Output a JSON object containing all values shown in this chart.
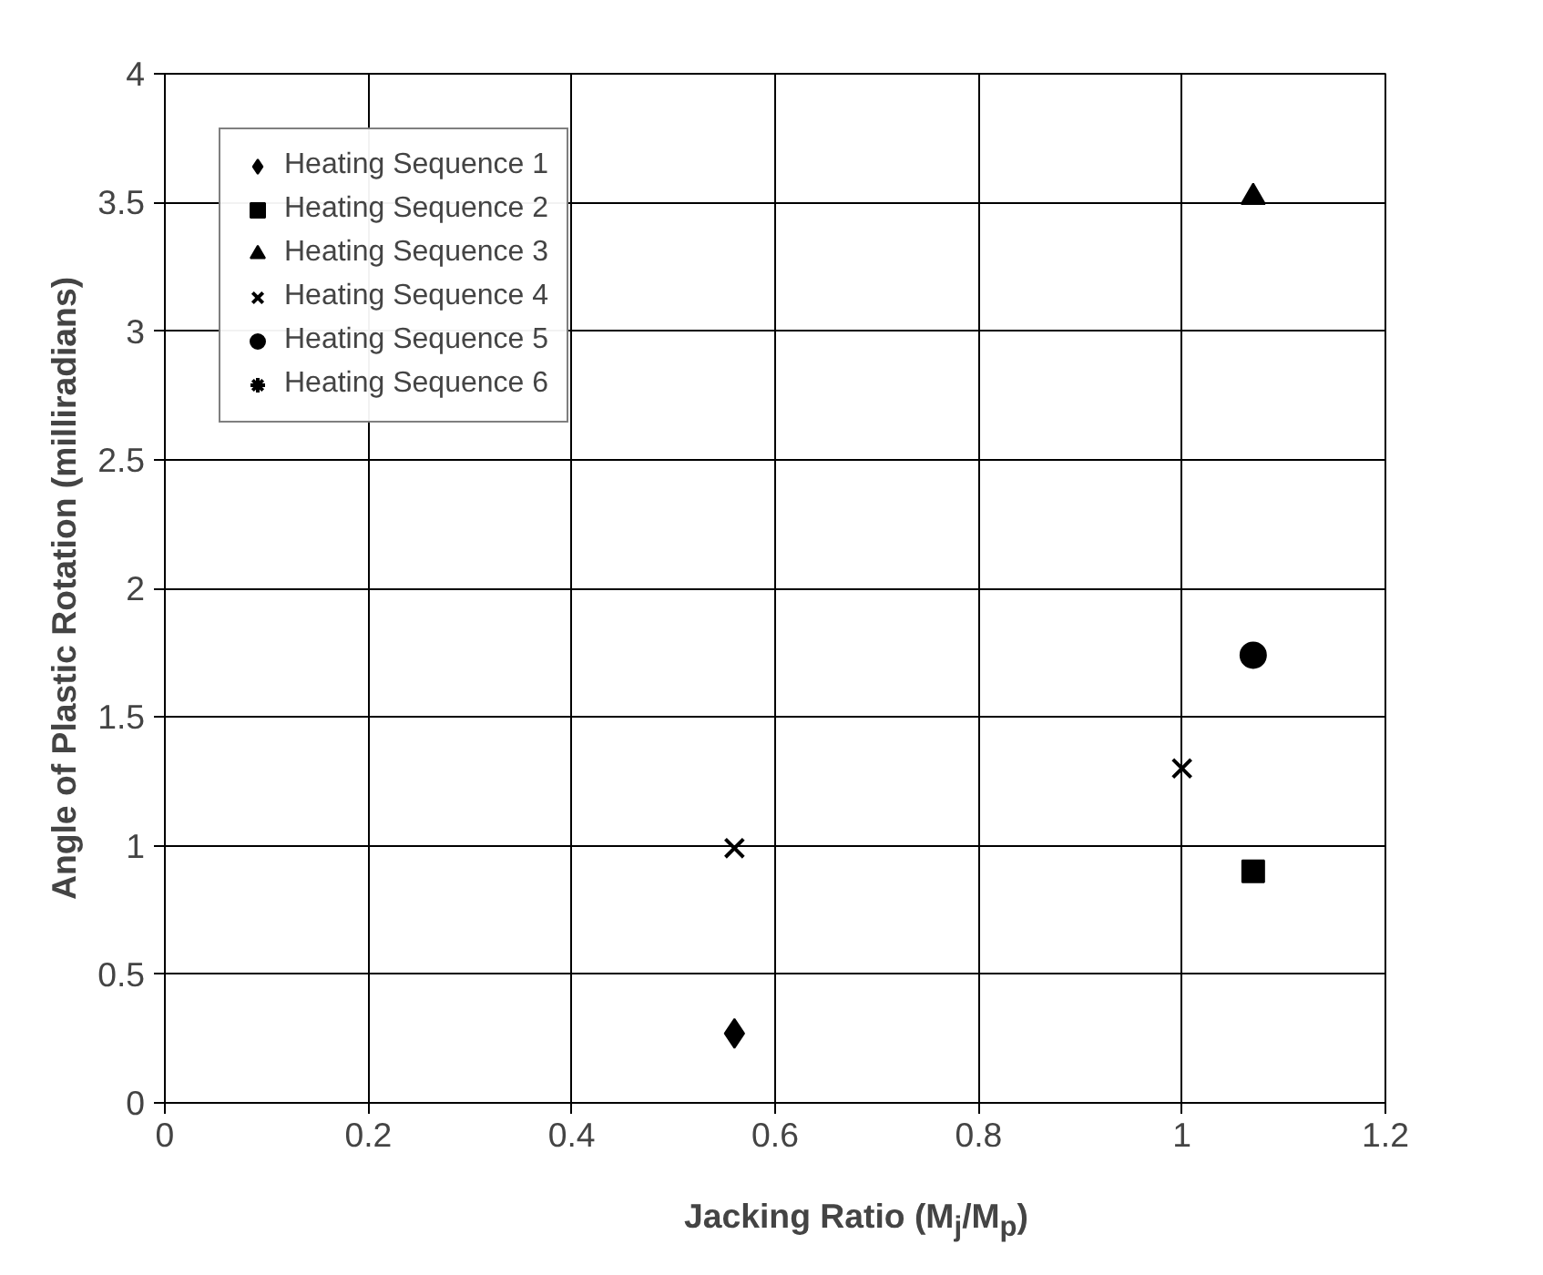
{
  "chart_data": {
    "type": "scatter",
    "xlabel": "Jacking Ratio (M$_{j}$/M$_{p}$)",
    "ylabel": "Angle of Plastic Rotation (milliradians)",
    "xlim": [
      0,
      1.2
    ],
    "ylim": [
      0,
      4
    ],
    "xticks": [
      0,
      0.2,
      0.4,
      0.6,
      0.8,
      1,
      1.2
    ],
    "yticks": [
      0,
      0.5,
      1,
      1.5,
      2,
      2.5,
      3,
      3.5,
      4
    ],
    "grid": true,
    "legend": "top left",
    "series": [
      {
        "name": "Heating Sequence 1",
        "color": "#000000",
        "marker": "diamond",
        "x": [
          0.56
        ],
        "values": [
          0.27
        ]
      },
      {
        "name": "Heating Sequence 2",
        "color": "#000000",
        "marker": "square",
        "x": [
          1.07
        ],
        "values": [
          0.9
        ]
      },
      {
        "name": "Heating Sequence 3",
        "color": "#000000",
        "marker": "triangle",
        "x": [
          1.07
        ],
        "values": [
          3.52
        ]
      },
      {
        "name": "Heating Sequence 4",
        "color": "#000000",
        "marker": "x",
        "x": [
          0.56,
          1.0
        ],
        "values": [
          0.99,
          1.3
        ]
      },
      {
        "name": "Heating Sequence 5",
        "color": "#000000",
        "marker": "circle",
        "x": [
          1.07
        ],
        "values": [
          1.74
        ]
      },
      {
        "name": "Heating Sequence 6",
        "color": "#000000",
        "marker": "asterisk"
      }
    ]
  }
}
